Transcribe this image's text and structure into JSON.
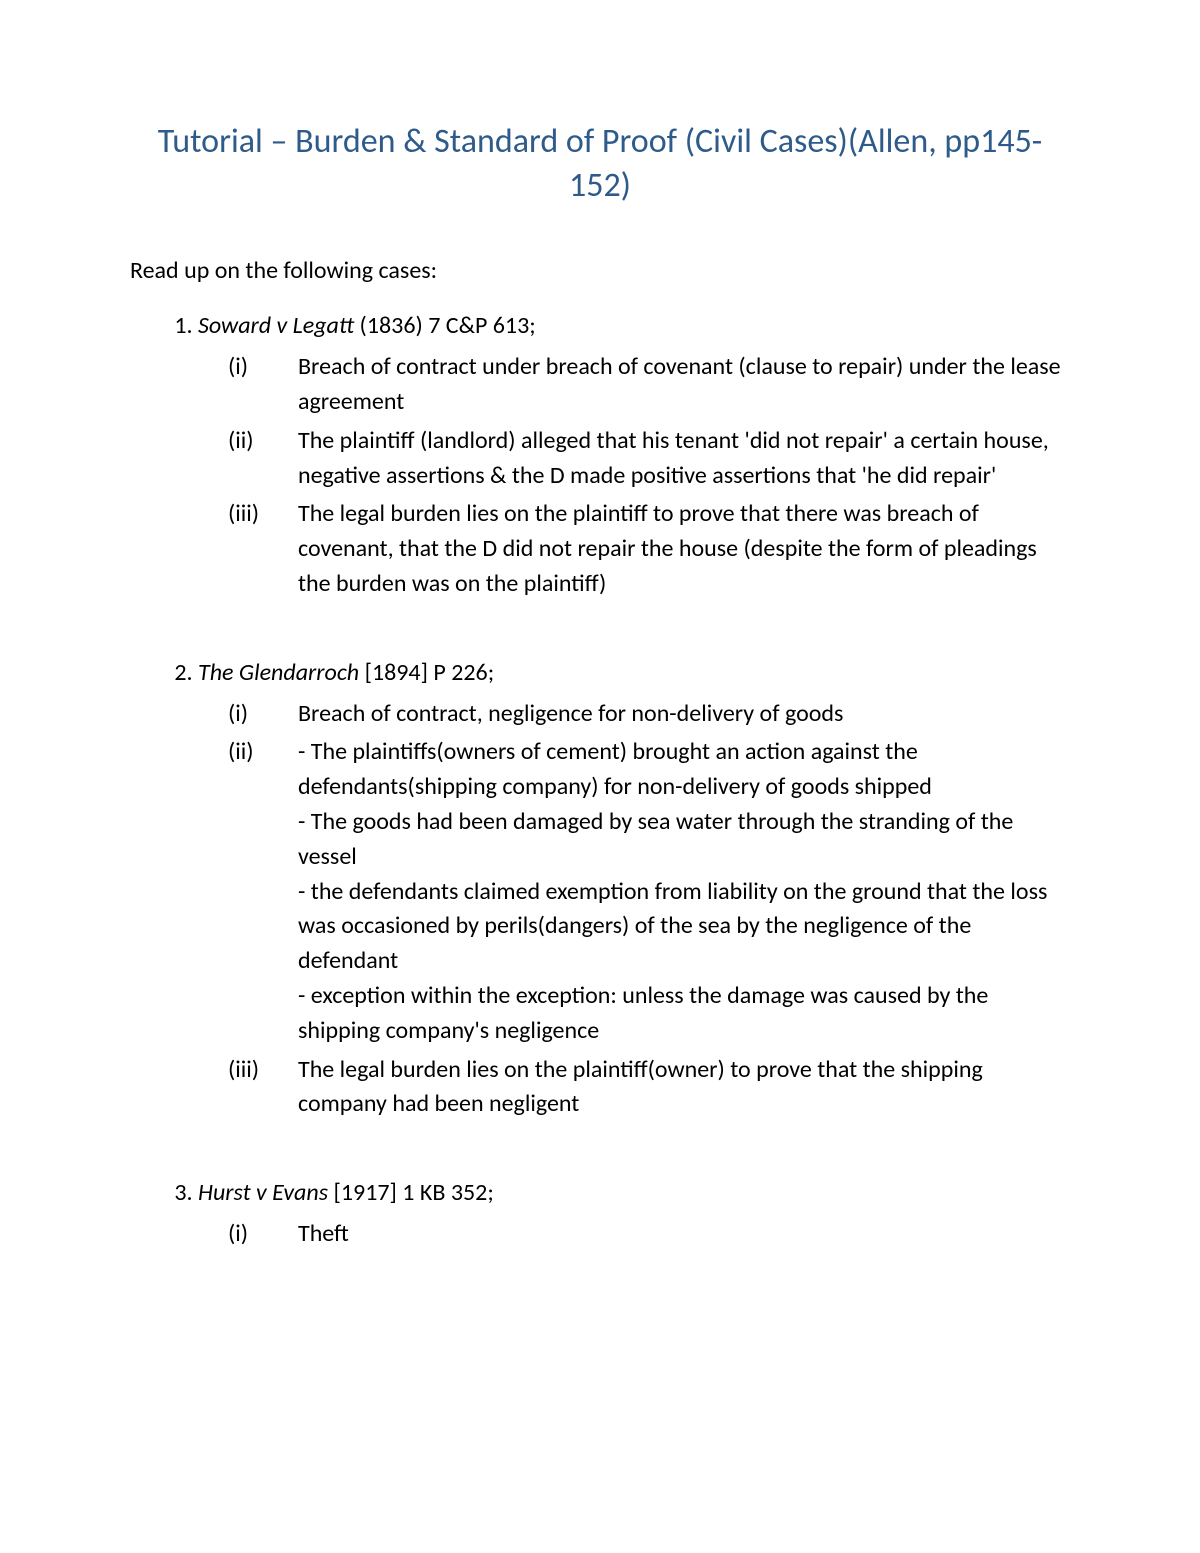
{
  "title": "Tutorial – Burden & Standard of Proof (Civil Cases)(Allen, pp145-152)",
  "intro": "Read up on the following cases:",
  "colors": {
    "title": "#2e5b8a",
    "body": "#000000",
    "background": "#ffffff"
  },
  "fonts": {
    "title_size": 34,
    "body_size": 24
  },
  "cases": [
    {
      "name": "Soward v Legatt",
      "citation": " (1836) 7 C&P 613;",
      "points": [
        {
          "marker": "(i)",
          "lines": [
            "Breach of contract under breach of covenant (clause to repair) under the lease agreement"
          ]
        },
        {
          "marker": "(ii)",
          "lines": [
            "The plaintiff (landlord) alleged that his tenant 'did not repair' a certain house, negative assertions & the D made positive assertions that 'he did repair'"
          ]
        },
        {
          "marker": "(iii)",
          "lines": [
            "The legal burden lies on the plaintiff to prove that there was breach of covenant, that the D did not repair the house (despite the form of pleadings the burden was on the plaintiff)"
          ]
        }
      ]
    },
    {
      "name": "The Glendarroch",
      "citation": " [1894] P 226;",
      "points": [
        {
          "marker": "(i)",
          "lines": [
            "Breach of contract, negligence for non-delivery of goods"
          ]
        },
        {
          "marker": "(ii)",
          "lines": [
            "- The plaintiffs(owners of cement) brought an action against the defendants(shipping company) for non-delivery of goods shipped",
            "- The goods had been damaged by sea water through the stranding of the vessel",
            "- the defendants claimed exemption from liability on the ground that the loss was occasioned by perils(dangers) of the sea by the negligence of the defendant",
            "- exception within the exception: unless the damage was caused by the shipping company's negligence"
          ]
        },
        {
          "marker": "(iii)",
          "lines": [
            "The legal burden lies on the plaintiff(owner) to prove that the shipping company had been negligent"
          ]
        }
      ]
    },
    {
      "name": "Hurst v Evans",
      "citation": " [1917] 1 KB 352;",
      "points": [
        {
          "marker": "(i)",
          "lines": [
            "Theft"
          ]
        }
      ]
    }
  ]
}
